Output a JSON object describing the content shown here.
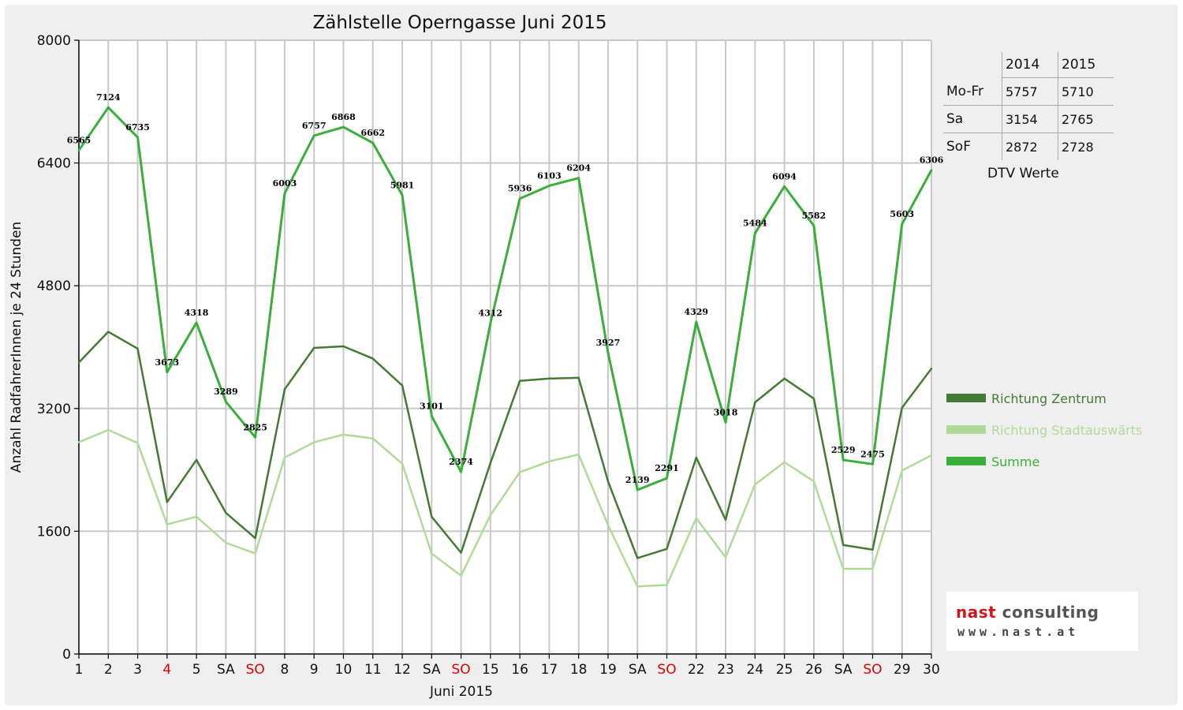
{
  "chart_data": {
    "type": "line",
    "title": "Zählstelle Operngasse Juni 2015",
    "ylabel": "Anzahl RadfahrerInnen je 24 Stunden",
    "xlabel": "Juni 2015",
    "ylim": [
      0,
      8000
    ],
    "yticks": [
      0,
      1600,
      3200,
      4800,
      6400,
      8000
    ],
    "grid": true,
    "legend_position": "right",
    "categories": [
      "1",
      "2",
      "3",
      "4",
      "5",
      "SA",
      "SO",
      "8",
      "9",
      "10",
      "11",
      "12",
      "SA",
      "SO",
      "15",
      "16",
      "17",
      "18",
      "19",
      "SA",
      "SO",
      "22",
      "23",
      "24",
      "25",
      "26",
      "SA",
      "SO",
      "29",
      "30"
    ],
    "red_categories": [
      3,
      6,
      13,
      20,
      27
    ],
    "series": [
      {
        "name": "Richtung Zentrum",
        "color": "#457a35",
        "values": [
          3800,
          4200,
          3980,
          1980,
          2530,
          1840,
          1510,
          3450,
          3990,
          4010,
          3850,
          3500,
          1790,
          1320,
          2490,
          3560,
          3590,
          3600,
          2250,
          1250,
          1370,
          2560,
          1750,
          3280,
          3590,
          3330,
          1420,
          1360,
          3210,
          3720
        ]
      },
      {
        "name": "Richtung Stadtauswärts",
        "color": "#aedb98",
        "values": [
          2760,
          2920,
          2750,
          1690,
          1790,
          1450,
          1310,
          2560,
          2760,
          2860,
          2810,
          2480,
          1310,
          1020,
          1810,
          2370,
          2510,
          2600,
          1680,
          880,
          900,
          1770,
          1260,
          2210,
          2500,
          2250,
          1110,
          1110,
          2390,
          2590
        ]
      },
      {
        "name": "Summe",
        "color": "#3aae3a",
        "values": [
          6565,
          7124,
          6735,
          3673,
          4318,
          3289,
          2825,
          6003,
          6757,
          6868,
          6662,
          5981,
          3101,
          2374,
          4312,
          5936,
          6103,
          6204,
          3927,
          2139,
          2291,
          4329,
          3018,
          5484,
          6094,
          5582,
          2529,
          2475,
          5603,
          6306
        ],
        "labels": [
          "6565",
          "7124",
          "6735",
          "3673",
          "4318",
          "3289",
          "2825",
          "6003",
          "6757",
          "6868",
          "6662",
          "5981",
          "3101",
          "2374",
          "4312",
          "5936",
          "6103",
          "6204",
          "3927",
          "2139",
          "2291",
          "4329",
          "3018",
          "5484",
          "6094",
          "5582",
          "2529",
          "2475",
          "5603",
          "6306"
        ]
      }
    ]
  },
  "dtv_table": {
    "header": [
      "",
      "2014",
      "2015"
    ],
    "rows": [
      {
        "label": "Mo-Fr",
        "v2014": "5757",
        "v2015": "5710"
      },
      {
        "label": "Sa",
        "v2014": "3154",
        "v2015": "2765"
      },
      {
        "label": "SoF",
        "v2014": "2872",
        "v2015": "2728"
      }
    ],
    "caption": "DTV Werte"
  },
  "logo": {
    "line1_a": "nast",
    "line1_b": "consulting",
    "line2": "www.nast.at"
  }
}
